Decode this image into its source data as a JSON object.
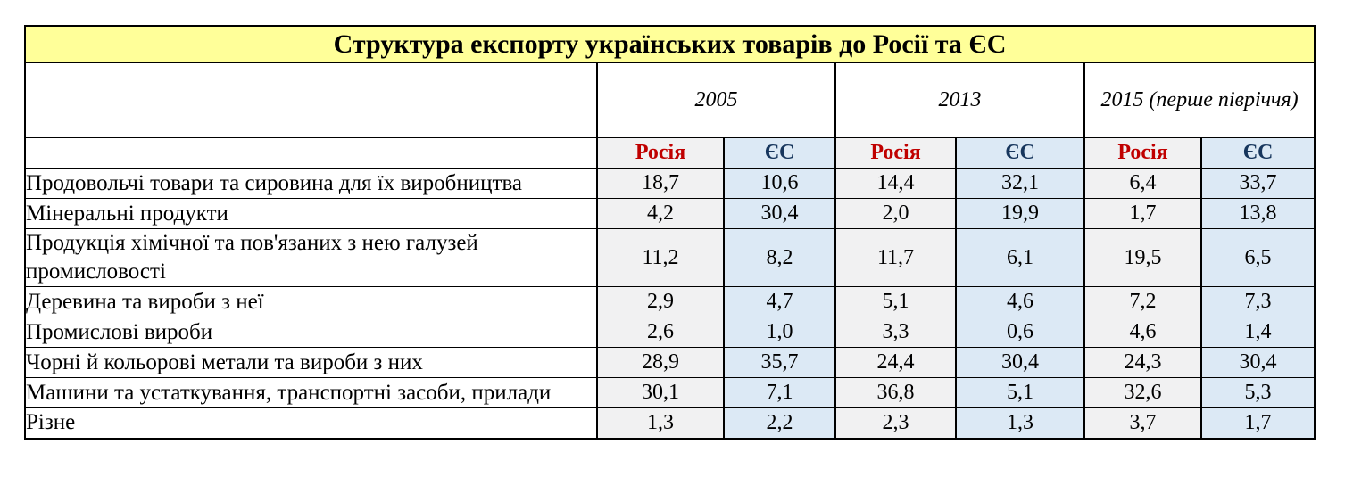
{
  "title": "Структура експорту українських товарів до Росії та ЄС",
  "columns": {
    "year_groups": [
      {
        "label": "2005",
        "russia_label": "Росія",
        "eu_label": "ЄС"
      },
      {
        "label": "2013",
        "russia_label": "Росія",
        "eu_label": "ЄС"
      },
      {
        "label": "2015 (перше півріччя)",
        "russia_label": "Росія",
        "eu_label": "ЄС"
      }
    ],
    "value_order": [
      "2005 Росія",
      "2005 ЄС",
      "2013 Росія",
      "2013 ЄС",
      "2015 Росія",
      "2015 ЄС"
    ]
  },
  "rows": [
    {
      "label": "Продовольчі товари та сировина для їх виробництва",
      "values": [
        "18,7",
        "10,6",
        "14,4",
        "32,1",
        "6,4",
        "33,7"
      ]
    },
    {
      "label": "Мінеральні продукти",
      "values": [
        "4,2",
        "30,4",
        "2,0",
        "19,9",
        "1,7",
        "13,8"
      ]
    },
    {
      "label": "Продукція хімічної та пов'язаних з нею галузей промисловості",
      "values": [
        "11,2",
        "8,2",
        "11,7",
        "6,1",
        "19,5",
        "6,5"
      ]
    },
    {
      "label": "Деревина та вироби з неї",
      "values": [
        "2,9",
        "4,7",
        "5,1",
        "4,6",
        "7,2",
        "7,3"
      ]
    },
    {
      "label": "Промислові вироби",
      "values": [
        "2,6",
        "1,0",
        "3,3",
        "0,6",
        "4,6",
        "1,4"
      ]
    },
    {
      "label": "Чорні й кольорові метали та вироби з них",
      "values": [
        "28,9",
        "35,7",
        "24,4",
        "30,4",
        "24,3",
        "30,4"
      ]
    },
    {
      "label": "Машини та  устаткування, транспортні засоби, прилади",
      "values": [
        "30,1",
        "7,1",
        "36,8",
        "5,1",
        "32,6",
        "5,3"
      ]
    },
    {
      "label": "Різне",
      "values": [
        "1,3",
        "2,2",
        "2,3",
        "1,3",
        "3,7",
        "1,7"
      ]
    }
  ],
  "colors": {
    "title_bg": "#ffff99",
    "russia_col_bg": "#f1f1f2",
    "eu_col_bg": "#dce9f5",
    "russia_header_text": "#c00000",
    "eu_header_text": "#17365d",
    "border": "#000000"
  }
}
